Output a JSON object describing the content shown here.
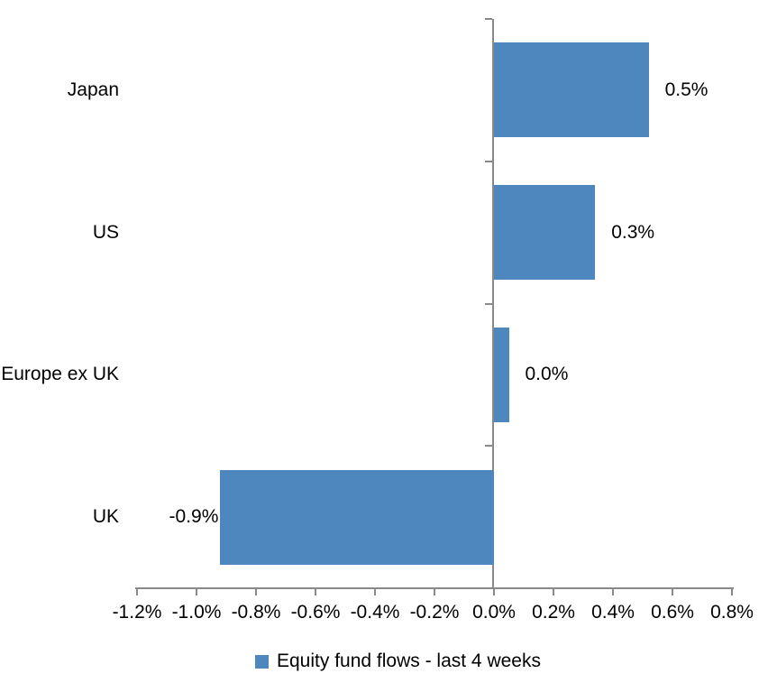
{
  "chart_data": {
    "type": "bar",
    "orientation": "horizontal",
    "title": "",
    "xlabel": "",
    "ylabel": "",
    "grid": false,
    "categories": [
      "Japan",
      "US",
      "Europe ex UK",
      "UK"
    ],
    "values": [
      0.5,
      0.3,
      0.0,
      -0.9
    ],
    "value_labels": [
      "0.5%",
      "0.3%",
      "0.0%",
      "-0.9%"
    ],
    "bar_extent_estimates": [
      0.52,
      0.34,
      0.05,
      -0.92
    ],
    "xlim": [
      -1.2,
      0.8
    ],
    "x_tick_values": [
      -1.2,
      -1.0,
      -0.8,
      -0.6,
      -0.4,
      -0.2,
      0.0,
      0.2,
      0.4,
      0.6,
      0.8
    ],
    "x_tick_labels": [
      "-1.2%",
      "-1.0%",
      "-0.8%",
      "-0.6%",
      "-0.4%",
      "-0.2%",
      "0.0%",
      "0.2%",
      "0.4%",
      "0.6%",
      "0.8%"
    ],
    "legend": [
      "Equity fund flows - last 4 weeks"
    ],
    "legend_position": "bottom",
    "colors": {
      "bar": "#4E87BE",
      "axis": "#898989",
      "text": "#000000",
      "background": "#FFFFFF"
    }
  }
}
